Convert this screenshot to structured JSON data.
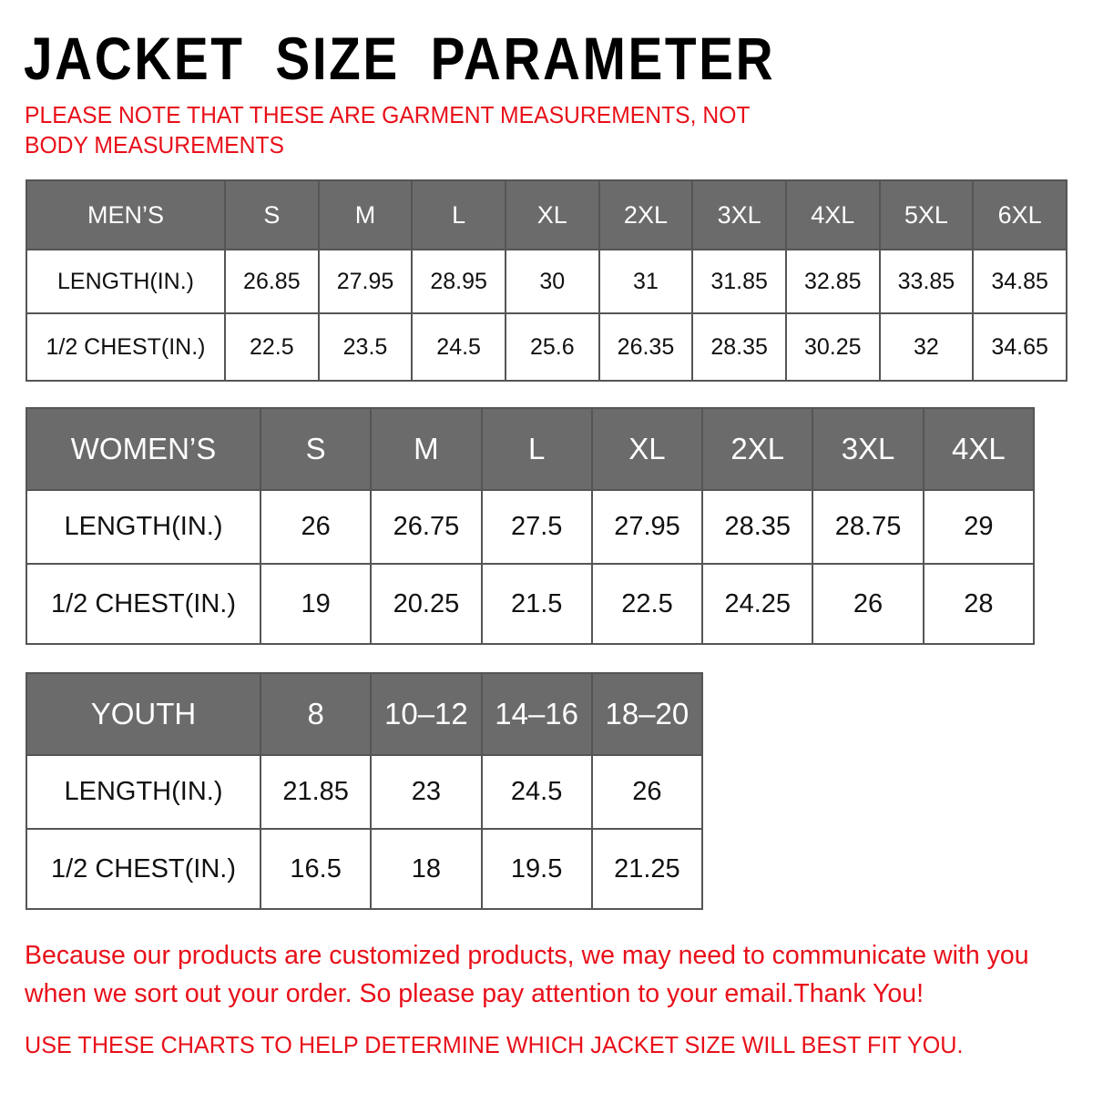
{
  "title": "JACKET SIZE PARAMETER",
  "note": "PLEASE NOTE THAT THESE ARE GARMENT MEASUREMENTS, NOT BODY MEASUREMENTS",
  "colors": {
    "header_bg": "#6b6b6b",
    "accent_red": "#e8101a"
  },
  "tables": [
    {
      "id": "men",
      "headers": [
        "MEN’S",
        "S",
        "M",
        "L",
        "XL",
        "2XL",
        "3XL",
        "4XL",
        "5XL",
        "6XL"
      ],
      "rows": [
        [
          "LENGTH(IN.)",
          "26.85",
          "27.95",
          "28.95",
          "30",
          "31",
          "31.85",
          "32.85",
          "33.85",
          "34.85"
        ],
        [
          "1/2 CHEST(IN.)",
          "22.5",
          "23.5",
          "24.5",
          "25.6",
          "26.35",
          "28.35",
          "30.25",
          "32",
          "34.65"
        ]
      ]
    },
    {
      "id": "women",
      "headers": [
        "WOMEN’S",
        "S",
        "M",
        "L",
        "XL",
        "2XL",
        "3XL",
        "4XL"
      ],
      "rows": [
        [
          "LENGTH(IN.)",
          "26",
          "26.75",
          "27.5",
          "27.95",
          "28.35",
          "28.75",
          "29"
        ],
        [
          "1/2 CHEST(IN.)",
          "19",
          "20.25",
          "21.5",
          "22.5",
          "24.25",
          "26",
          "28"
        ]
      ]
    },
    {
      "id": "youth",
      "headers": [
        "YOUTH",
        "8",
        "10–12",
        "14–16",
        "18–20"
      ],
      "rows": [
        [
          "LENGTH(IN.)",
          "21.85",
          "23",
          "24.5",
          "26"
        ],
        [
          "1/2 CHEST(IN.)",
          "16.5",
          "18",
          "19.5",
          "21.25"
        ]
      ]
    }
  ],
  "footer_note": "Because our products are customized products, we may need to communicate with you when we sort out your order. So please pay attention to your email.Thank You!",
  "footer_instruction": "USE THESE CHARTS TO HELP DETERMINE WHICH JACKET SIZE WILL BEST FIT YOU."
}
